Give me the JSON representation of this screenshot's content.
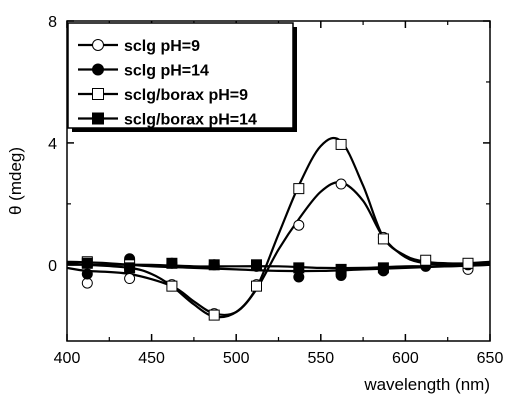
{
  "chart_data": {
    "type": "line",
    "xlabel": "wavelength (nm)",
    "ylabel": "θ (mdeg)",
    "xlim": [
      400,
      650
    ],
    "ylim": [
      -2.5,
      8
    ],
    "xticks": [
      400,
      450,
      500,
      550,
      600,
      650
    ],
    "yticks": [
      0,
      4,
      8
    ],
    "legend_position": "top-left",
    "grid": false,
    "series": [
      {
        "name": "sclg pH=9",
        "marker": "circle-open",
        "marker_x": [
          412,
          437,
          462,
          487,
          512,
          537,
          562,
          587,
          612,
          637
        ],
        "marker_y": [
          -0.6,
          -0.45,
          -0.65,
          -1.6,
          -0.65,
          1.3,
          2.65,
          0.9,
          0.1,
          -0.15
        ],
        "curve_x": [
          400,
          412,
          437,
          462,
          475,
          487,
          500,
          512,
          525,
          537,
          550,
          562,
          575,
          587,
          600,
          612,
          625,
          637,
          650
        ],
        "curve_y": [
          -0.1,
          -0.2,
          -0.3,
          -0.7,
          -1.2,
          -1.6,
          -1.55,
          -0.8,
          0.5,
          1.5,
          2.4,
          2.7,
          2.1,
          0.9,
          0.25,
          0.05,
          0.0,
          0.0,
          0.05
        ]
      },
      {
        "name": "sclg pH=14",
        "marker": "circle-filled",
        "marker_x": [
          412,
          437,
          462,
          487,
          512,
          537,
          562,
          587,
          612,
          637
        ],
        "marker_y": [
          -0.3,
          0.2,
          0.05,
          0.0,
          -0.05,
          -0.4,
          -0.35,
          -0.2,
          -0.05,
          0.0
        ],
        "curve_x": [
          400,
          425,
          450,
          475,
          500,
          525,
          550,
          575,
          600,
          625,
          650
        ],
        "curve_y": [
          0.1,
          0.05,
          -0.05,
          -0.1,
          -0.15,
          -0.2,
          -0.2,
          -0.15,
          -0.1,
          -0.05,
          0.0
        ]
      },
      {
        "name": "sclg/borax pH=9",
        "marker": "square-open",
        "marker_x": [
          412,
          437,
          462,
          487,
          512,
          537,
          562,
          587,
          612,
          637
        ],
        "marker_y": [
          0.1,
          0.0,
          -0.7,
          -1.65,
          -0.7,
          2.5,
          3.95,
          0.85,
          0.15,
          0.05
        ],
        "curve_x": [
          400,
          412,
          437,
          450,
          462,
          475,
          487,
          500,
          512,
          525,
          537,
          550,
          562,
          575,
          587,
          600,
          612,
          625,
          637,
          650
        ],
        "curve_y": [
          0.05,
          0.0,
          -0.1,
          -0.3,
          -0.7,
          -1.3,
          -1.7,
          -1.55,
          -0.75,
          1.0,
          2.6,
          3.9,
          4.05,
          2.6,
          0.9,
          0.3,
          0.1,
          0.05,
          0.05,
          0.1
        ]
      },
      {
        "name": "sclg/borax pH=14",
        "marker": "square-filled",
        "marker_x": [
          412,
          437,
          462,
          487,
          512,
          537,
          562,
          587
        ],
        "marker_y": [
          0.05,
          -0.1,
          0.05,
          0.0,
          0.0,
          -0.1,
          -0.15,
          -0.1
        ],
        "curve_x": [
          400,
          425,
          450,
          475,
          500,
          525,
          550,
          575,
          600,
          625,
          650
        ],
        "curve_y": [
          0.0,
          0.0,
          0.0,
          -0.05,
          -0.05,
          -0.05,
          -0.1,
          -0.1,
          -0.05,
          -0.05,
          0.0
        ]
      }
    ]
  }
}
